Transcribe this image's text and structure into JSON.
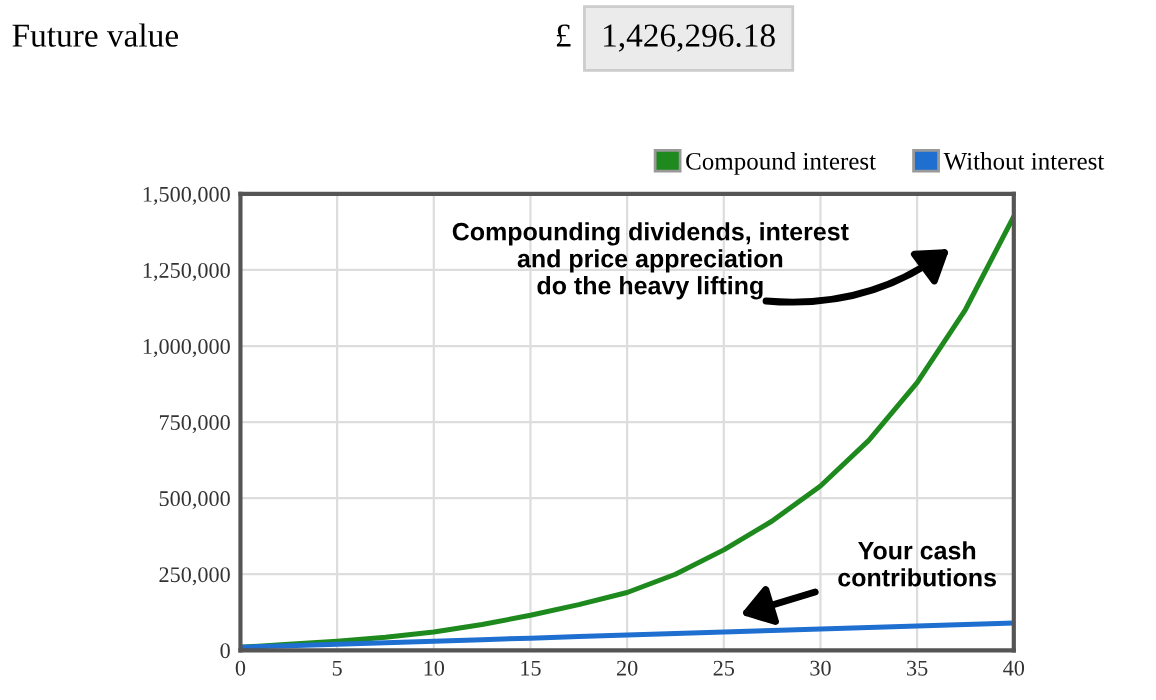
{
  "chart_data": {
    "type": "line",
    "title": "Future value",
    "subtitle": "£",
    "annotations": [
      "1,426,296.18",
      "Compounding dividends, interest\nand price appreciation\ndo the heavy lifting",
      "Your cash\ncontributions"
    ],
    "x": [
      0,
      2.5,
      5,
      7.5,
      10,
      12.5,
      15,
      17.5,
      20,
      22.5,
      25,
      27.5,
      30,
      32.5,
      35,
      37.5,
      40
    ],
    "series": [
      {
        "name": "Compound interest",
        "color": "#1e8a1e",
        "values": [
          10000,
          20000,
          30000,
          43000,
          60000,
          85000,
          115000,
          150000,
          190000,
          250000,
          330000,
          425000,
          540000,
          690000,
          880000,
          1120000,
          1426000
        ]
      },
      {
        "name": "Without interest",
        "color": "#1f6fd0",
        "values": [
          10000,
          15000,
          20000,
          25000,
          30000,
          35000,
          40000,
          45000,
          50000,
          55000,
          60000,
          65000,
          70000,
          75000,
          80000,
          85000,
          90000
        ]
      }
    ],
    "xlim": [
      0,
      40
    ],
    "xticks": [
      0,
      5,
      10,
      15,
      20,
      25,
      30,
      35,
      40
    ],
    "ylim": [
      0,
      1500000
    ],
    "yticks": [
      {
        "value": 0,
        "label": "0"
      },
      {
        "value": 250000,
        "label": "250,000"
      },
      {
        "value": 500000,
        "label": "500,000"
      },
      {
        "value": 750000,
        "label": "750,000"
      },
      {
        "value": 1000000,
        "label": "1,000,000"
      },
      {
        "value": 1250000,
        "label": "1,250,000"
      },
      {
        "value": 1500000,
        "label": "1,500,000"
      }
    ],
    "grid": true,
    "legend": "top right",
    "marker": "none",
    "line_style": "solid"
  }
}
